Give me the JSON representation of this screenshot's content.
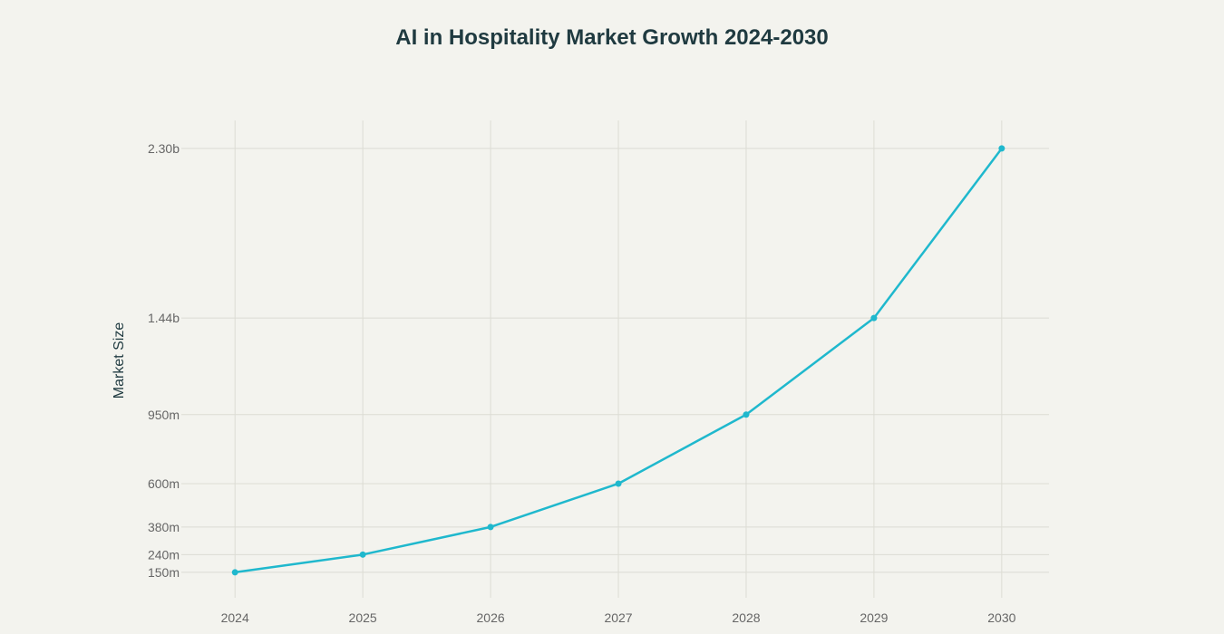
{
  "chart_data": {
    "type": "line",
    "title": "AI in Hospitality Market Growth 2024-2030",
    "xlabel": "",
    "ylabel": "Market Size",
    "x": [
      2024,
      2025,
      2026,
      2027,
      2028,
      2029,
      2030
    ],
    "x_tick_labels": [
      "2024",
      "2025",
      "2026",
      "2027",
      "2028",
      "2029",
      "2030"
    ],
    "series": [
      {
        "name": "Market Size",
        "values": [
          150,
          240,
          380,
          600,
          950,
          1440,
          2300
        ],
        "color": "#1fb8cd"
      }
    ],
    "value_unit": "millions",
    "y_ticks": [
      150,
      240,
      380,
      600,
      950,
      1440,
      2300
    ],
    "y_tick_labels": [
      "150m",
      "240m",
      "380m",
      "600m",
      "950m",
      "1.44b",
      "2.30b"
    ],
    "xlim": [
      2023.58,
      2030.37
    ],
    "ylim": [
      21,
      2442
    ],
    "grid": true,
    "legend": "none"
  }
}
